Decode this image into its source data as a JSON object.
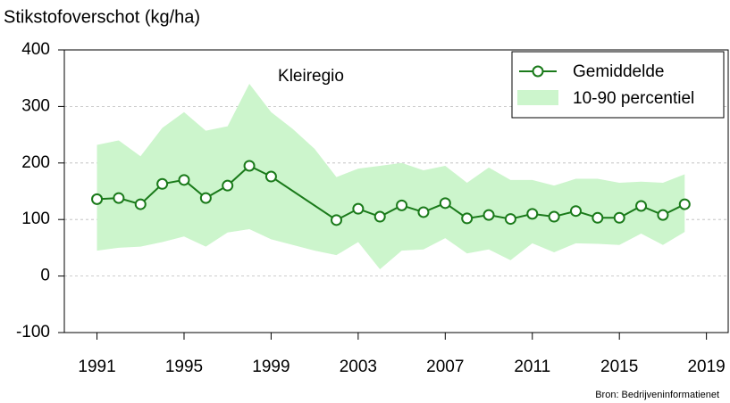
{
  "chart_data": {
    "type": "line",
    "y_label": "Stikstofoverschot (kg/ha)",
    "annotation": "Kleiregio",
    "source": "Bron: Bedrijveninformatienet",
    "xlim": [
      1989.5,
      2020
    ],
    "xticks": [
      1991,
      1995,
      1999,
      2003,
      2007,
      2011,
      2015,
      2019
    ],
    "ylim": [
      -100,
      400
    ],
    "yticks": [
      -100,
      0,
      100,
      200,
      300,
      400
    ],
    "grid": true,
    "legend": "top-right",
    "series": [
      {
        "name": "Gemiddelde",
        "color": "#1a7a1a",
        "x": [
          1991,
          1992,
          1993,
          1994,
          1995,
          1996,
          1997,
          1998,
          1999,
          2002,
          2003,
          2004,
          2005,
          2006,
          2007,
          2008,
          2009,
          2010,
          2011,
          2012,
          2013,
          2014,
          2015,
          2016,
          2017,
          2018
        ],
        "values": [
          136,
          138,
          127,
          163,
          170,
          138,
          160,
          195,
          176,
          99,
          119,
          105,
          125,
          113,
          129,
          102,
          108,
          101,
          110,
          105,
          115,
          103,
          103,
          124,
          108,
          127
        ]
      }
    ],
    "band": {
      "name": "10-90 percentiel",
      "color": "#ccf5cc",
      "x": [
        1991,
        1992,
        1993,
        1994,
        1995,
        1996,
        1997,
        1998,
        1999,
        2000,
        2001,
        2002,
        2003,
        2004,
        2005,
        2006,
        2007,
        2008,
        2009,
        2010,
        2011,
        2012,
        2013,
        2014,
        2015,
        2016,
        2017,
        2018
      ],
      "upper": [
        232,
        240,
        212,
        262,
        290,
        257,
        265,
        340,
        290,
        260,
        225,
        175,
        190,
        195,
        200,
        187,
        195,
        165,
        192,
        170,
        170,
        160,
        172,
        172,
        165,
        167,
        165,
        180
      ],
      "lower": [
        45,
        50,
        52,
        60,
        70,
        52,
        77,
        83,
        65,
        55,
        45,
        37,
        60,
        12,
        45,
        47,
        67,
        40,
        47,
        28,
        58,
        42,
        58,
        57,
        55,
        75,
        55,
        78
      ]
    }
  }
}
